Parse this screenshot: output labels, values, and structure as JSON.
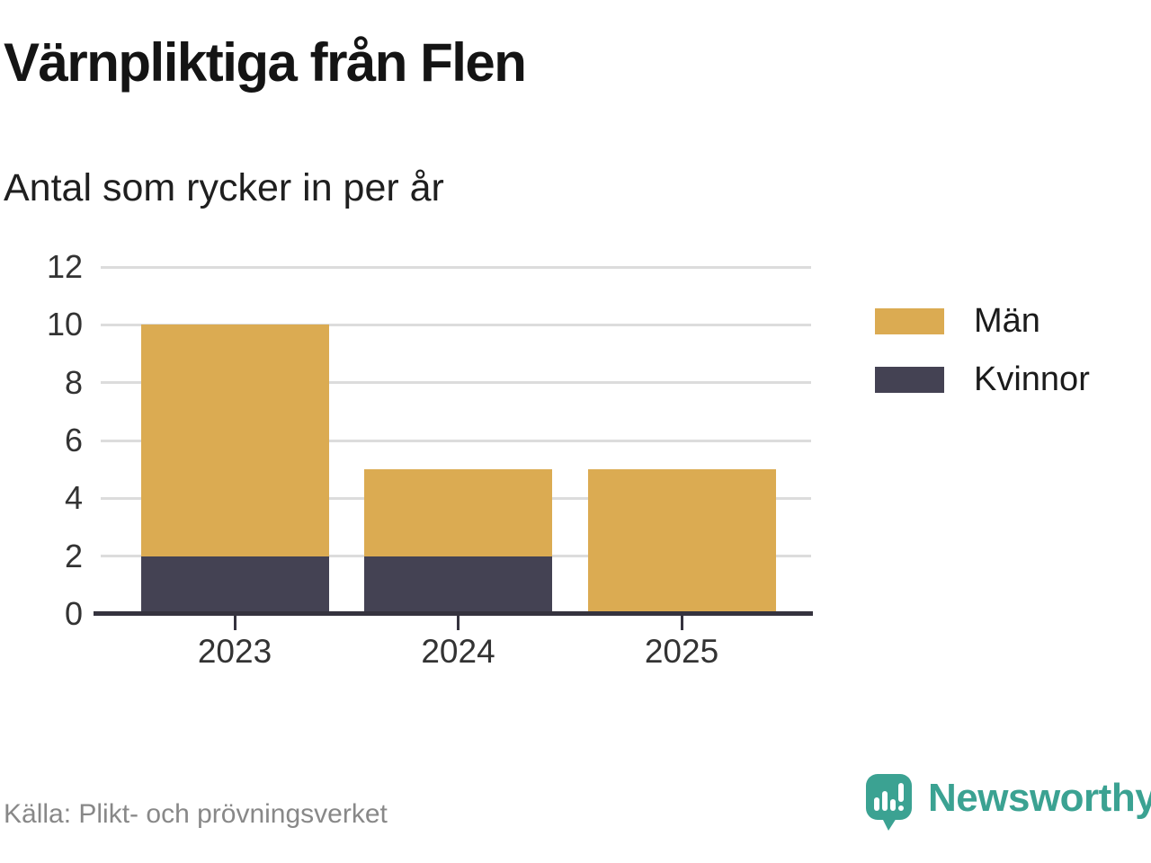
{
  "header": {
    "title": "Värnpliktiga från Flen",
    "subtitle": "Antal som rycker in per år"
  },
  "chart_data": {
    "type": "bar",
    "stacked": true,
    "title": "Värnpliktiga från Flen",
    "subtitle": "Antal som rycker in per år",
    "categories": [
      "2023",
      "2024",
      "2025"
    ],
    "series": [
      {
        "name": "Män",
        "color": "#dbab52",
        "values": [
          8,
          3,
          5
        ]
      },
      {
        "name": "Kvinnor",
        "color": "#444253",
        "values": [
          2,
          2,
          0
        ]
      }
    ],
    "stack_order_bottom_to_top": [
      "Kvinnor",
      "Män"
    ],
    "totals": [
      10,
      5,
      5
    ],
    "xlabel": "",
    "ylabel": "",
    "ylim": [
      0,
      12
    ],
    "yticks": [
      0,
      2,
      4,
      6,
      8,
      10,
      12
    ],
    "grid": "horizontal",
    "legend_position": "right"
  },
  "footer": {
    "source": "Källa: Plikt- och prövningsverket",
    "brand": "Newsworthy"
  },
  "colors": {
    "men": "#dbab52",
    "women": "#444253",
    "teal": "#3ba292",
    "grid": "#dcdcdc",
    "axis": "#35333e",
    "tick_label": "#333333",
    "source_text": "#888888"
  }
}
